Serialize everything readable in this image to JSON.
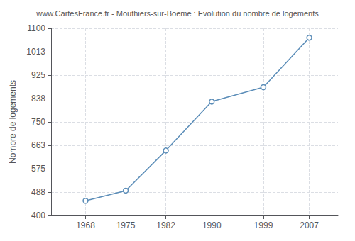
{
  "chart_data": {
    "type": "line",
    "title": "www.CartesFrance.fr - Mouthiers-sur-Boëme : Evolution du nombre de logements",
    "ylabel": "Nombre de logements",
    "x": [
      1968,
      1975,
      1982,
      1990,
      1999,
      2007
    ],
    "values": [
      455,
      493,
      643,
      826,
      880,
      1065
    ],
    "color": "#5b8db8",
    "marker": "circle",
    "xlim": [
      1962,
      2012
    ],
    "xticks": [
      1968,
      1975,
      1982,
      1990,
      1999,
      2007
    ],
    "ylim": [
      400,
      1100
    ],
    "yticks": [
      400,
      488,
      575,
      663,
      750,
      838,
      925,
      1013,
      1100
    ],
    "grid": true
  }
}
